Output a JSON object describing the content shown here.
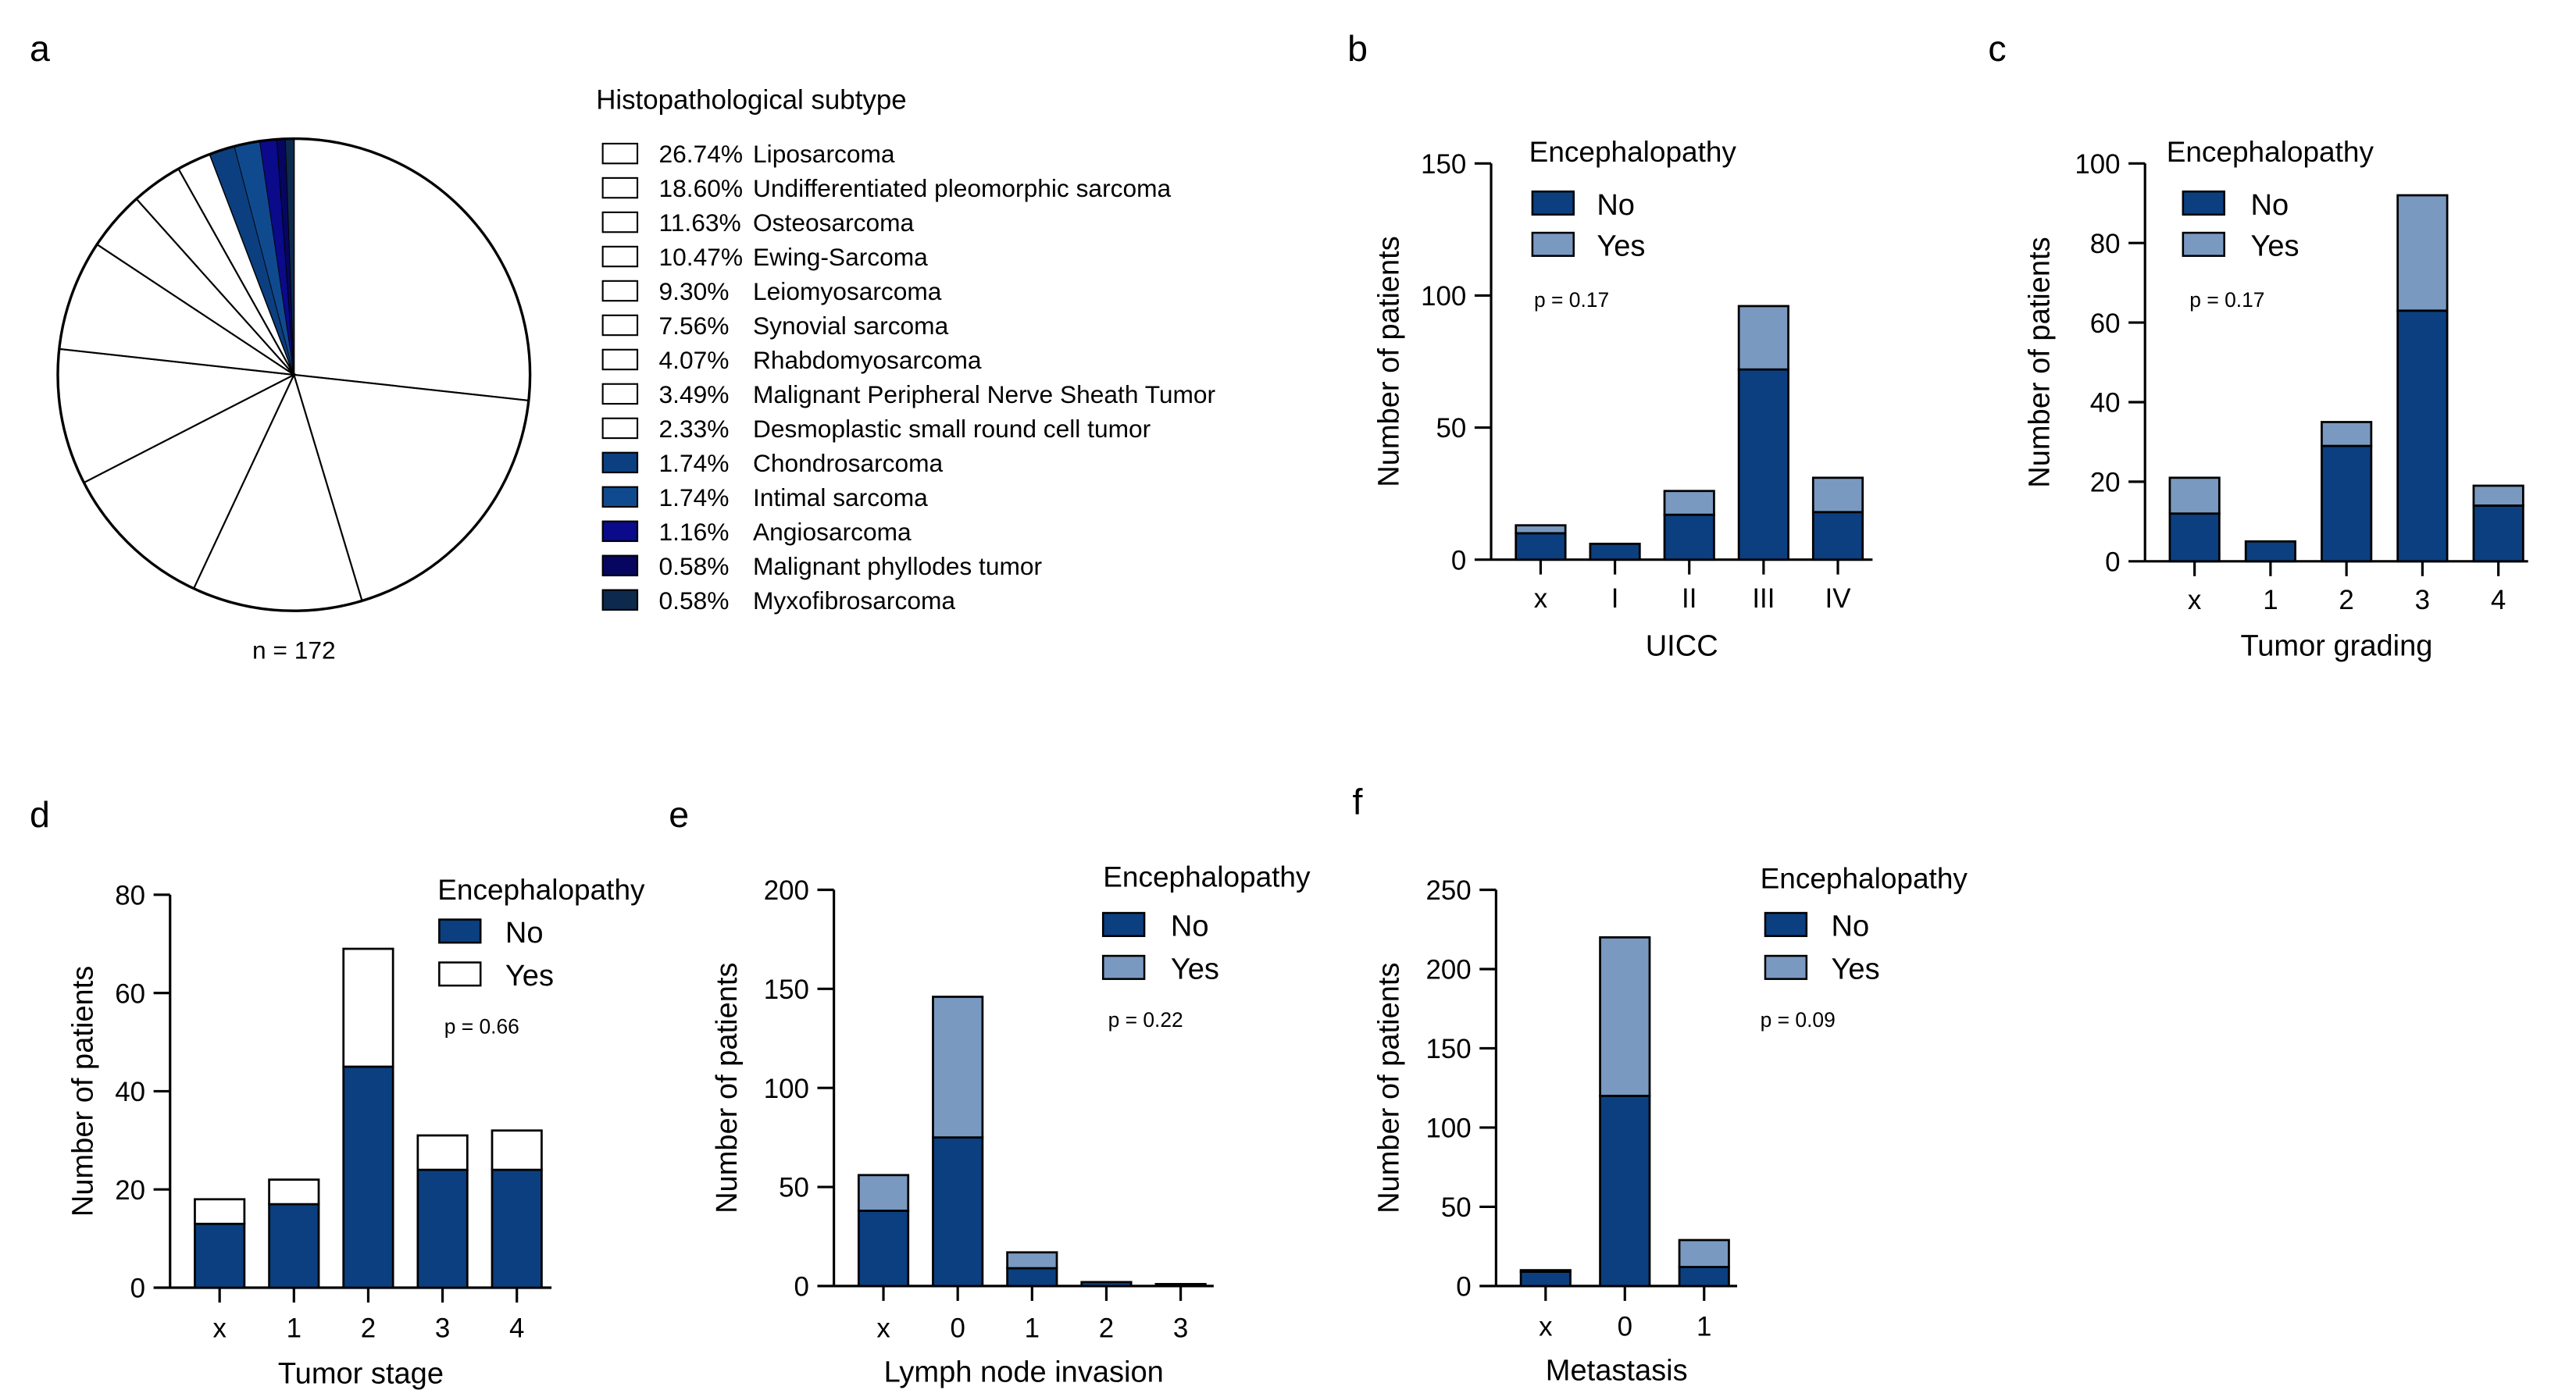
{
  "colors": {
    "no": "#0b3f80",
    "yes_light": "#7a99c0",
    "yes_white": "#ffffff",
    "outline": "#000000",
    "pie_blue_1": "#0b3f80",
    "pie_blue_2": "#104a8e",
    "pie_blue_3": "#0a0a8a",
    "pie_blue_4": "#060660",
    "pie_blue_5": "#0d2a4d"
  },
  "chart_data": [
    {
      "id": "a",
      "panel_label": "a",
      "type": "pie",
      "legend_title": "Histopathological subtype",
      "n_label": "n = 172",
      "slices": [
        {
          "label": "Liposarcoma",
          "pct_text": "26.74%",
          "value": 26.74,
          "color": "#ffffff"
        },
        {
          "label": "Undifferentiated pleomorphic sarcoma",
          "pct_text": "18.60%",
          "value": 18.6,
          "color": "#ffffff"
        },
        {
          "label": "Osteosarcoma",
          "pct_text": "11.63%",
          "value": 11.63,
          "color": "#ffffff"
        },
        {
          "label": "Ewing-Sarcoma",
          "pct_text": "10.47%",
          "value": 10.47,
          "color": "#ffffff"
        },
        {
          "label": "Leiomyosarcoma",
          "pct_text": "9.30%",
          "value": 9.3,
          "color": "#ffffff"
        },
        {
          "label": "Synovial sarcoma",
          "pct_text": "7.56%",
          "value": 7.56,
          "color": "#ffffff"
        },
        {
          "label": "Rhabdomyosarcoma",
          "pct_text": "4.07%",
          "value": 4.07,
          "color": "#ffffff"
        },
        {
          "label": "Malignant Peripheral Nerve Sheath Tumor",
          "pct_text": "3.49%",
          "value": 3.49,
          "color": "#ffffff"
        },
        {
          "label": "Desmoplastic small round cell tumor",
          "pct_text": "2.33%",
          "value": 2.33,
          "color": "#ffffff"
        },
        {
          "label": "Chondrosarcoma",
          "pct_text": "1.74%",
          "value": 1.74,
          "color": "#0b3f80"
        },
        {
          "label": "Intimal sarcoma",
          "pct_text": "1.74%",
          "value": 1.74,
          "color": "#104a8e"
        },
        {
          "label": "Angiosarcoma",
          "pct_text": "1.16%",
          "value": 1.16,
          "color": "#0a0a8a"
        },
        {
          "label": "Malignant phyllodes tumor",
          "pct_text": "0.58%",
          "value": 0.58,
          "color": "#060660"
        },
        {
          "label": "Myxofibrosarcoma",
          "pct_text": "0.58%",
          "value": 0.58,
          "color": "#0d2a4d"
        }
      ]
    },
    {
      "id": "b",
      "panel_label": "b",
      "type": "bar",
      "stacked": true,
      "xlabel": "UICC",
      "ylabel": "Number of patients",
      "ylim": [
        0,
        150
      ],
      "yticks": [
        0,
        50,
        100,
        150
      ],
      "categories": [
        "x",
        "I",
        "II",
        "III",
        "IV"
      ],
      "legend_title": "Encephalopathy",
      "p_value": "p = 0.17",
      "series": [
        {
          "name": "No",
          "color": "#0b3f80",
          "values": [
            10,
            6,
            17,
            72,
            18
          ]
        },
        {
          "name": "Yes",
          "color": "#7a99c0",
          "values": [
            3,
            0,
            9,
            24,
            13
          ]
        }
      ]
    },
    {
      "id": "c",
      "panel_label": "c",
      "type": "bar",
      "stacked": true,
      "xlabel": "Tumor grading",
      "ylabel": "Number of patients",
      "ylim": [
        0,
        100
      ],
      "yticks": [
        0,
        20,
        40,
        60,
        80,
        100
      ],
      "categories": [
        "x",
        "1",
        "2",
        "3",
        "4"
      ],
      "legend_title": "Encephalopathy",
      "p_value": "p = 0.17",
      "series": [
        {
          "name": "No",
          "color": "#0b3f80",
          "values": [
            12,
            5,
            29,
            63,
            14
          ]
        },
        {
          "name": "Yes",
          "color": "#7a99c0",
          "values": [
            9,
            0,
            6,
            29,
            5
          ]
        }
      ]
    },
    {
      "id": "d",
      "panel_label": "d",
      "type": "bar",
      "stacked": true,
      "xlabel": "Tumor stage",
      "ylabel": "Number of patients",
      "ylim": [
        0,
        80
      ],
      "yticks": [
        0,
        20,
        40,
        60,
        80
      ],
      "categories": [
        "x",
        "1",
        "2",
        "3",
        "4"
      ],
      "legend_title": "Encephalopathy",
      "p_value": "p = 0.66",
      "series": [
        {
          "name": "No",
          "color": "#0b3f80",
          "values": [
            13,
            17,
            45,
            24,
            24
          ]
        },
        {
          "name": "Yes",
          "color": "#ffffff",
          "values": [
            5,
            5,
            24,
            7,
            8
          ]
        }
      ]
    },
    {
      "id": "e",
      "panel_label": "e",
      "type": "bar",
      "stacked": true,
      "xlabel": "Lymph node invasion",
      "ylabel": "Number of patients",
      "ylim": [
        0,
        200
      ],
      "yticks": [
        0,
        50,
        100,
        150,
        200
      ],
      "categories": [
        "x",
        "0",
        "1",
        "2",
        "3"
      ],
      "legend_title": "Encephalopathy",
      "p_value": "p = 0.22",
      "series": [
        {
          "name": "No",
          "color": "#0b3f80",
          "values": [
            38,
            75,
            9,
            2,
            1
          ]
        },
        {
          "name": "Yes",
          "color": "#7a99c0",
          "values": [
            18,
            71,
            8,
            0,
            0
          ]
        }
      ]
    },
    {
      "id": "f",
      "panel_label": "f",
      "type": "bar",
      "stacked": true,
      "xlabel": "Metastasis",
      "ylabel": "Number of patients",
      "ylim": [
        0,
        250
      ],
      "yticks": [
        0,
        50,
        100,
        150,
        200,
        250
      ],
      "categories": [
        "x",
        "0",
        "1"
      ],
      "legend_title": "Encephalopathy",
      "p_value": "p = 0.09",
      "series": [
        {
          "name": "No",
          "color": "#0b3f80",
          "values": [
            9,
            120,
            12
          ]
        },
        {
          "name": "Yes",
          "color": "#7a99c0",
          "values": [
            1,
            100,
            17
          ]
        }
      ]
    }
  ]
}
